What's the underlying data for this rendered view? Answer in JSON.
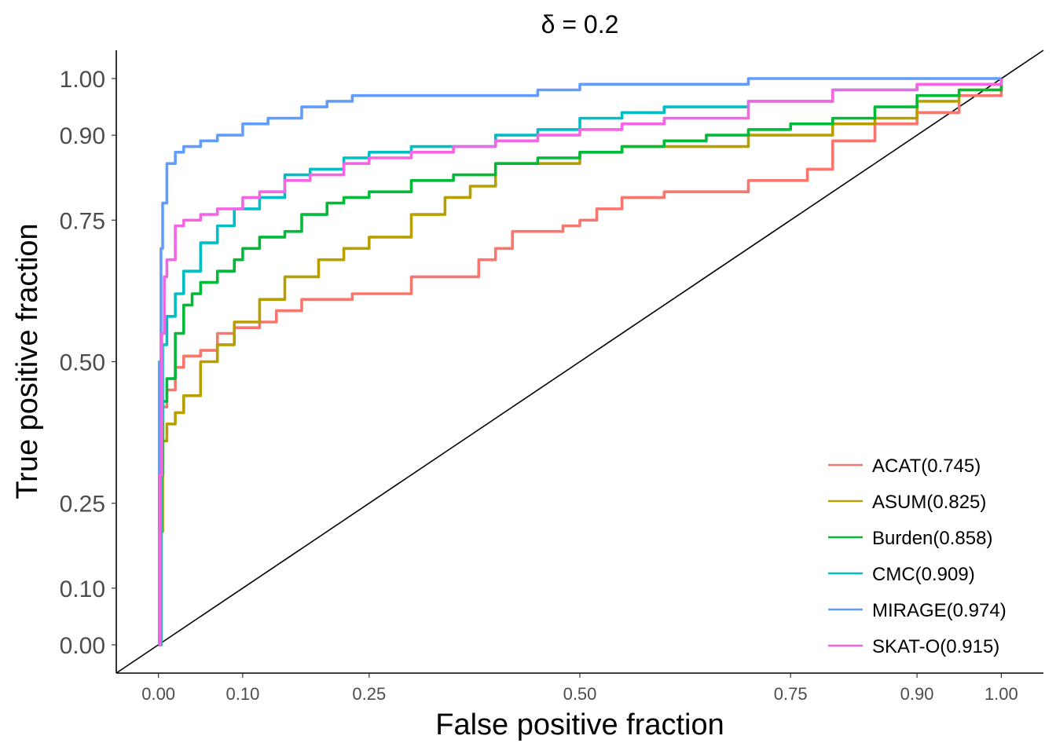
{
  "chart_data": {
    "type": "line",
    "title": "δ = 0.2",
    "xlabel": "False positive fraction",
    "ylabel": "True positive fraction",
    "xlim": [
      -0.05,
      1.05
    ],
    "ylim": [
      -0.05,
      1.05
    ],
    "x_ticks": [
      0.0,
      0.1,
      0.25,
      0.5,
      0.75,
      0.9,
      1.0
    ],
    "x_tick_labels": [
      "0.00",
      "0.10",
      "0.25",
      "0.50",
      "0.75",
      "0.90",
      "1.00"
    ],
    "y_ticks": [
      0.0,
      0.1,
      0.25,
      0.5,
      0.75,
      0.9,
      1.0
    ],
    "y_tick_labels": [
      "0.00",
      "0.10",
      "0.25",
      "0.50",
      "0.75",
      "0.90",
      "1.00"
    ],
    "reference_line": {
      "x": [
        -0.05,
        1.05
      ],
      "y": [
        -0.05,
        1.05
      ],
      "color": "#000000"
    },
    "grid": false,
    "legend_position": "bottom-right",
    "series": [
      {
        "name": "ACAT(0.745)",
        "color": "#F8766D",
        "x": [
          0.0,
          0.003,
          0.005,
          0.01,
          0.02,
          0.03,
          0.05,
          0.07,
          0.09,
          0.12,
          0.14,
          0.17,
          0.2,
          0.23,
          0.3,
          0.38,
          0.4,
          0.42,
          0.45,
          0.48,
          0.5,
          0.52,
          0.55,
          0.6,
          0.7,
          0.77,
          0.8,
          0.85,
          0.9,
          0.95,
          1.0
        ],
        "y": [
          0.0,
          0.2,
          0.42,
          0.45,
          0.49,
          0.51,
          0.52,
          0.55,
          0.56,
          0.57,
          0.59,
          0.61,
          0.61,
          0.62,
          0.65,
          0.68,
          0.7,
          0.73,
          0.73,
          0.74,
          0.75,
          0.77,
          0.79,
          0.8,
          0.82,
          0.84,
          0.89,
          0.92,
          0.94,
          0.97,
          1.0
        ]
      },
      {
        "name": "ASUM(0.825)",
        "color": "#B79F00",
        "x": [
          0.0,
          0.003,
          0.005,
          0.01,
          0.02,
          0.03,
          0.05,
          0.07,
          0.09,
          0.12,
          0.15,
          0.19,
          0.22,
          0.25,
          0.3,
          0.34,
          0.37,
          0.4,
          0.45,
          0.5,
          0.55,
          0.6,
          0.7,
          0.8,
          0.85,
          0.9,
          0.95,
          1.0
        ],
        "y": [
          0.0,
          0.2,
          0.36,
          0.39,
          0.41,
          0.44,
          0.5,
          0.53,
          0.57,
          0.61,
          0.65,
          0.68,
          0.7,
          0.72,
          0.76,
          0.79,
          0.81,
          0.85,
          0.85,
          0.87,
          0.88,
          0.88,
          0.9,
          0.92,
          0.93,
          0.96,
          0.98,
          1.0
        ]
      },
      {
        "name": "Burden(0.858)",
        "color": "#00BA38",
        "x": [
          0.0,
          0.003,
          0.005,
          0.01,
          0.02,
          0.03,
          0.04,
          0.05,
          0.07,
          0.09,
          0.1,
          0.12,
          0.15,
          0.17,
          0.2,
          0.22,
          0.25,
          0.3,
          0.35,
          0.4,
          0.45,
          0.5,
          0.55,
          0.6,
          0.65,
          0.7,
          0.75,
          0.8,
          0.85,
          0.9,
          0.95,
          1.0
        ],
        "y": [
          0.0,
          0.3,
          0.43,
          0.47,
          0.55,
          0.6,
          0.62,
          0.64,
          0.66,
          0.68,
          0.7,
          0.72,
          0.73,
          0.76,
          0.78,
          0.79,
          0.8,
          0.82,
          0.83,
          0.85,
          0.86,
          0.87,
          0.88,
          0.89,
          0.9,
          0.91,
          0.92,
          0.93,
          0.95,
          0.97,
          0.98,
          1.0
        ]
      },
      {
        "name": "CMC(0.909)",
        "color": "#00BFC4",
        "x": [
          0.0,
          0.003,
          0.005,
          0.01,
          0.02,
          0.03,
          0.05,
          0.07,
          0.09,
          0.12,
          0.15,
          0.18,
          0.22,
          0.25,
          0.3,
          0.35,
          0.4,
          0.45,
          0.5,
          0.55,
          0.6,
          0.7,
          0.8,
          0.9,
          1.0
        ],
        "y": [
          0.0,
          0.4,
          0.53,
          0.58,
          0.62,
          0.66,
          0.71,
          0.74,
          0.77,
          0.79,
          0.83,
          0.84,
          0.86,
          0.87,
          0.88,
          0.88,
          0.9,
          0.91,
          0.93,
          0.94,
          0.95,
          0.96,
          0.98,
          0.99,
          1.0
        ]
      },
      {
        "name": "MIRAGE(0.974)",
        "color": "#619CFF",
        "x": [
          0.0,
          0.001,
          0.003,
          0.005,
          0.01,
          0.02,
          0.03,
          0.05,
          0.07,
          0.1,
          0.13,
          0.17,
          0.2,
          0.23,
          0.3,
          0.4,
          0.45,
          0.5,
          0.6,
          0.7,
          0.8,
          0.9,
          1.0
        ],
        "y": [
          0.0,
          0.5,
          0.7,
          0.78,
          0.85,
          0.87,
          0.88,
          0.89,
          0.9,
          0.92,
          0.93,
          0.95,
          0.96,
          0.97,
          0.97,
          0.97,
          0.98,
          0.99,
          0.99,
          1.0,
          1.0,
          1.0,
          1.0
        ]
      },
      {
        "name": "SKAT-O(0.915)",
        "color": "#F564E3",
        "x": [
          0.0,
          0.002,
          0.004,
          0.007,
          0.01,
          0.02,
          0.03,
          0.05,
          0.07,
          0.1,
          0.12,
          0.15,
          0.18,
          0.22,
          0.25,
          0.3,
          0.35,
          0.4,
          0.45,
          0.5,
          0.55,
          0.6,
          0.7,
          0.8,
          0.9,
          1.0
        ],
        "y": [
          0.0,
          0.3,
          0.55,
          0.65,
          0.68,
          0.74,
          0.75,
          0.76,
          0.77,
          0.79,
          0.8,
          0.82,
          0.83,
          0.85,
          0.86,
          0.87,
          0.88,
          0.89,
          0.9,
          0.91,
          0.92,
          0.93,
          0.96,
          0.98,
          0.99,
          1.0
        ]
      }
    ]
  }
}
